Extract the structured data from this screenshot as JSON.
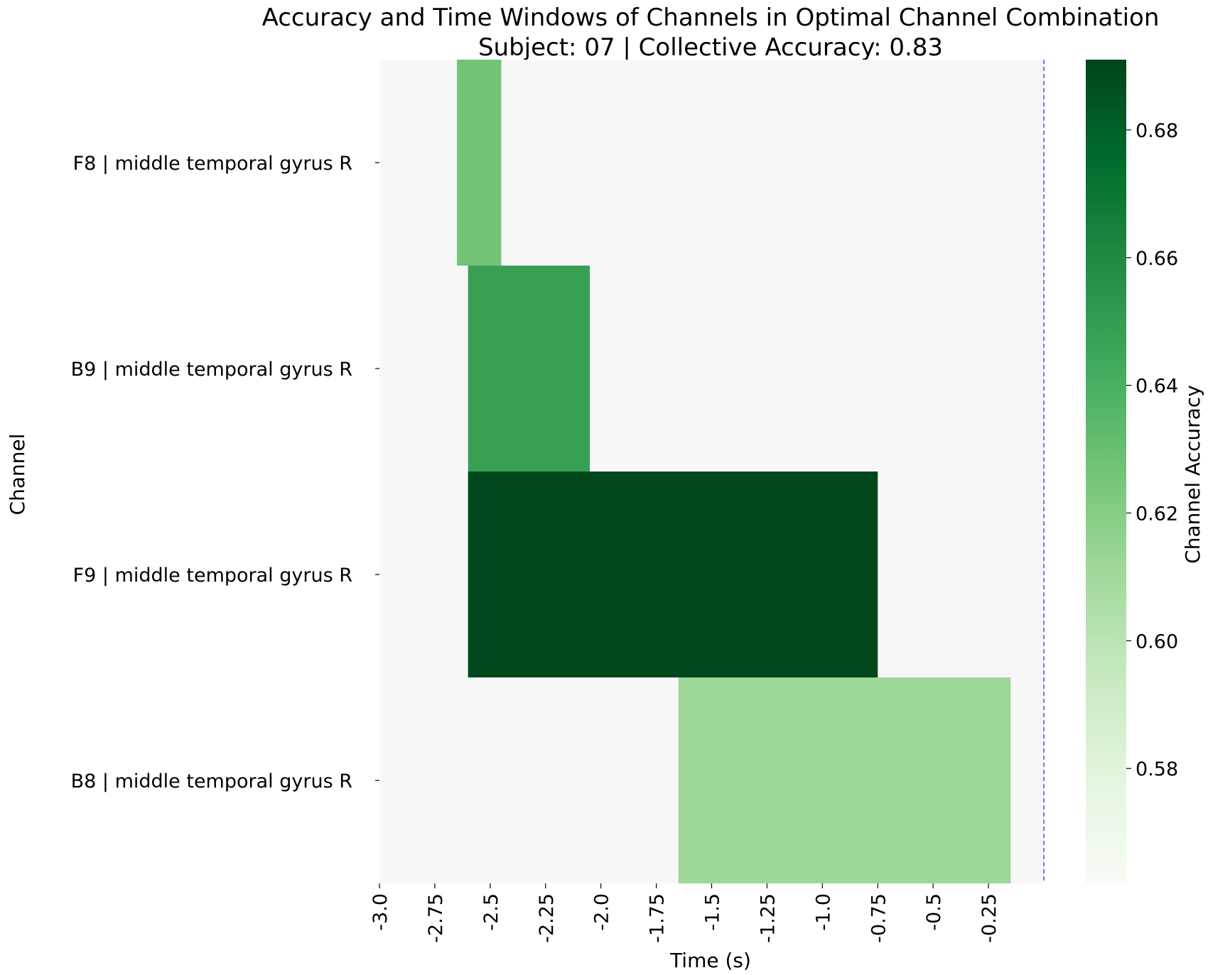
{
  "chart_data": {
    "type": "heatmap",
    "title": "Accuracy and Time Windows of Channels in Optimal Channel Combination",
    "subtitle": "Subject: 07 | Collective Accuracy: 0.83",
    "xlabel": "Time (s)",
    "ylabel": "Channel",
    "colorbar_label": "Channel Accuracy",
    "xlim": [
      -3.0,
      0.0
    ],
    "x_ticks": [
      -3.0,
      -2.75,
      -2.5,
      -2.25,
      -2.0,
      -1.75,
      -1.5,
      -1.25,
      -1.0,
      -0.75,
      -0.5,
      -0.25
    ],
    "x_tick_labels": [
      "-3.0",
      "-2.75",
      "-2.5",
      "-2.25",
      "-2.0",
      "-1.75",
      "-1.5",
      "-1.25",
      "-1.0",
      "-0.75",
      "-0.5",
      "-0.25"
    ],
    "reference_line_x": 0.0,
    "channels": [
      "F8 | middle temporal gyrus R",
      "B9 | middle temporal gyrus R",
      "F9 | middle temporal gyrus R",
      "B8 | middle temporal gyrus R"
    ],
    "windows": [
      {
        "channel": "F8 | middle temporal gyrus R",
        "start": -2.65,
        "end": -2.45,
        "accuracy": 0.627
      },
      {
        "channel": "B9 | middle temporal gyrus R",
        "start": -2.6,
        "end": -2.05,
        "accuracy": 0.648
      },
      {
        "channel": "F9 | middle temporal gyrus R",
        "start": -2.6,
        "end": -0.75,
        "accuracy": 0.69
      },
      {
        "channel": "B8 | middle temporal gyrus R",
        "start": -1.65,
        "end": -0.15,
        "accuracy": 0.612
      }
    ],
    "colorbar": {
      "vmin": 0.562,
      "vmax": 0.691,
      "ticks": [
        0.58,
        0.6,
        0.62,
        0.64,
        0.66,
        0.68
      ],
      "tick_labels": [
        "0.58",
        "0.60",
        "0.62",
        "0.64",
        "0.66",
        "0.68"
      ],
      "colormap": "Greens",
      "colors": [
        "#f7fcf5",
        "#e5f5e0",
        "#c7e9c0",
        "#a1d99b",
        "#74c476",
        "#41ab5d",
        "#238b45",
        "#006d2c",
        "#00441b"
      ]
    },
    "background_color": "#f7f7f7",
    "reference_line_color": "#4b5cf0"
  }
}
